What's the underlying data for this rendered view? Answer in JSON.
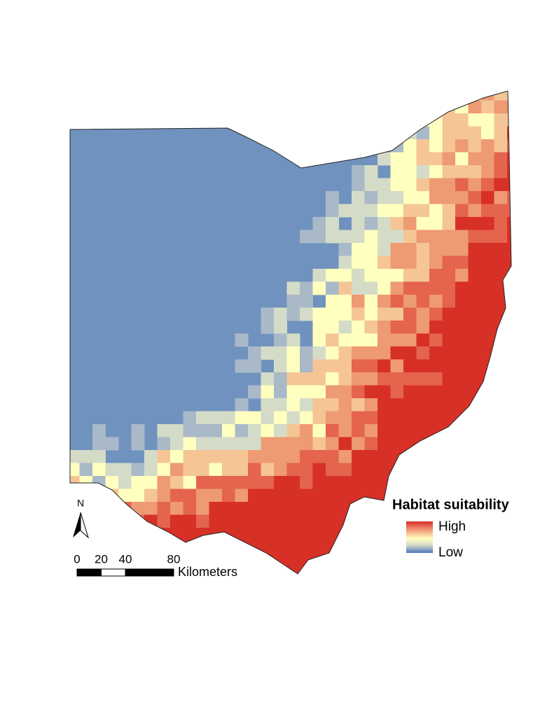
{
  "map": {
    "legend": {
      "title": "Habitat suitability",
      "high": "High",
      "low": "Low"
    },
    "north_arrow": "N",
    "scale_bar": {
      "ticks": [
        0,
        20,
        40,
        80
      ],
      "unit": "Kilometers"
    }
  }
}
